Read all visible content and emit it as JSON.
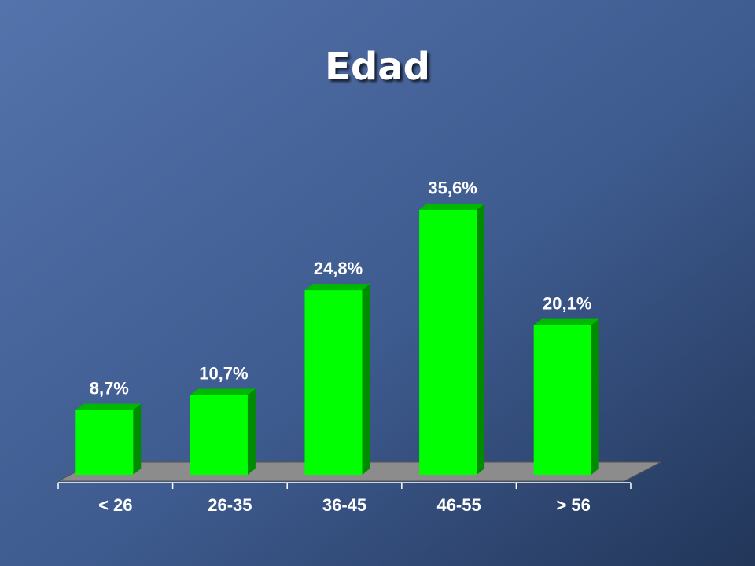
{
  "chart_data": {
    "type": "bar3d",
    "title": "Edad",
    "categories": [
      "< 26",
      "26-35",
      "36-45",
      "46-55",
      "> 56"
    ],
    "values": [
      8.7,
      10.7,
      24.8,
      35.6,
      20.1
    ],
    "value_labels": [
      "8,7%",
      "10,7%",
      "24,8%",
      "35,6%",
      "20,1%"
    ],
    "color": "#00ff00"
  }
}
